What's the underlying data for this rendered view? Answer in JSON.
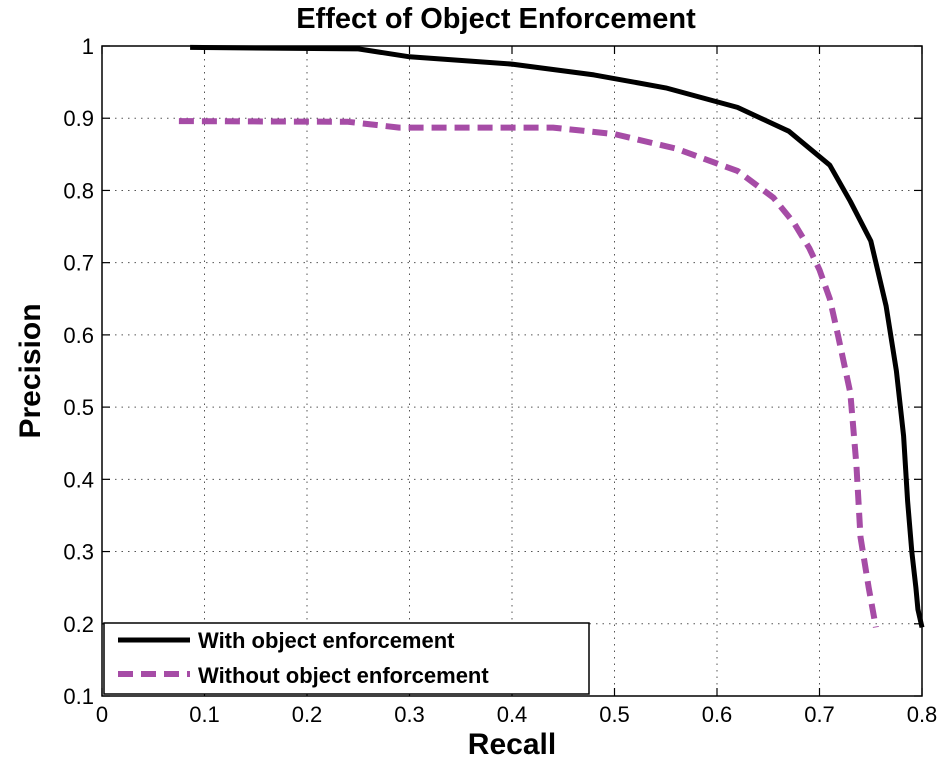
{
  "chart_data": {
    "type": "line",
    "title": "Effect of Object Enforcement",
    "xlabel": "Recall",
    "ylabel": "Precision",
    "xlim": [
      0,
      0.8
    ],
    "ylim": [
      0.1,
      1
    ],
    "xticks": [
      0,
      0.1,
      0.2,
      0.3,
      0.4,
      0.5,
      0.6,
      0.7,
      0.8
    ],
    "xtick_labels": [
      "0",
      "0.1",
      "0.2",
      "0.3",
      "0.4",
      "0.5",
      "0.6",
      "0.7",
      "0.8"
    ],
    "yticks": [
      0.1,
      0.2,
      0.3,
      0.4,
      0.5,
      0.6,
      0.7,
      0.8,
      0.9,
      1
    ],
    "ytick_labels": [
      "0.1",
      "0.2",
      "0.3",
      "0.4",
      "0.5",
      "0.6",
      "0.7",
      "0.8",
      "0.9",
      "1"
    ],
    "grid": true,
    "legend_position": "bottom-left",
    "series": [
      {
        "name": "With object enforcement",
        "color": "#000000",
        "style": "solid",
        "x": [
          0.086,
          0.25,
          0.3,
          0.4,
          0.48,
          0.55,
          0.62,
          0.67,
          0.71,
          0.73,
          0.75,
          0.765,
          0.775,
          0.782,
          0.786,
          0.79,
          0.794,
          0.796,
          0.8
        ],
        "y": [
          0.998,
          0.996,
          0.985,
          0.975,
          0.96,
          0.942,
          0.915,
          0.882,
          0.835,
          0.785,
          0.73,
          0.64,
          0.55,
          0.46,
          0.37,
          0.3,
          0.25,
          0.22,
          0.195
        ]
      },
      {
        "name": "Without object enforcement",
        "color": "#a64ca6",
        "style": "dashed",
        "x": [
          0.075,
          0.24,
          0.29,
          0.44,
          0.5,
          0.56,
          0.62,
          0.655,
          0.675,
          0.69,
          0.7,
          0.71,
          0.718,
          0.73,
          0.736,
          0.74,
          0.748,
          0.755
        ],
        "y": [
          0.896,
          0.895,
          0.887,
          0.887,
          0.878,
          0.858,
          0.827,
          0.79,
          0.755,
          0.72,
          0.69,
          0.65,
          0.6,
          0.52,
          0.42,
          0.32,
          0.25,
          0.195
        ]
      }
    ]
  }
}
